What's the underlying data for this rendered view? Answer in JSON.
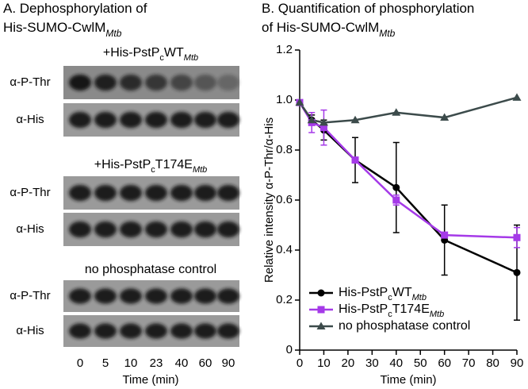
{
  "panel_a": {
    "title": [
      [
        {
          "text": "A. Dephosphorylation of"
        }
      ],
      [
        {
          "text": "His-SUMO-CwlM"
        },
        {
          "text": "Mtb",
          "sub": true,
          "italic": true
        }
      ]
    ],
    "groups": [
      {
        "header": [
          {
            "text": "+His-PstP"
          },
          {
            "text": "c",
            "sub": true
          },
          {
            "text": "WT"
          },
          {
            "text": "Mtb",
            "sub": true,
            "italic": true
          }
        ],
        "rows": [
          "α-P-Thr",
          "α-His"
        ]
      },
      {
        "header": [
          {
            "text": "+His-PstP"
          },
          {
            "text": "c",
            "sub": true
          },
          {
            "text": "T174E"
          },
          {
            "text": "Mtb",
            "sub": true,
            "italic": true
          }
        ],
        "rows": [
          "α-P-Thr",
          "α-His"
        ]
      },
      {
        "header": [
          {
            "text": "no phosphatase control"
          }
        ],
        "rows": [
          "α-P-Thr",
          "α-His"
        ]
      }
    ],
    "lanes": [
      0,
      5,
      10,
      23,
      40,
      60,
      90
    ],
    "xlabel": "Time (min)"
  },
  "chart_data": {
    "type": "line",
    "title": [
      [
        {
          "text": "B. Quantification of phosphorylation"
        }
      ],
      [
        {
          "text": "of His-SUMO-CwlM"
        },
        {
          "text": "Mtb",
          "sub": true,
          "italic": true
        }
      ]
    ],
    "xlabel": "Time (min)",
    "ylabel": "Relative intensity α-P-Thr/α-His",
    "x": [
      0,
      5,
      10,
      23,
      40,
      60,
      90
    ],
    "xlim": [
      0,
      90
    ],
    "xticks": [
      0,
      10,
      20,
      30,
      40,
      50,
      60,
      70,
      80,
      90
    ],
    "ylim": [
      0,
      1.2
    ],
    "yticks": [
      0,
      0.2,
      0.4,
      0.6,
      0.8,
      {
        "value": 1,
        "label": "1.0"
      },
      1.2
    ],
    "legend": "lower left",
    "series": [
      {
        "name": [
          {
            "text": "His-PstP"
          },
          {
            "text": "c",
            "sub": true
          },
          {
            "text": "WT"
          },
          {
            "text": "Mtb",
            "sub": true,
            "italic": true
          }
        ],
        "color": "#000000",
        "marker": "circle",
        "values": [
          0.99,
          0.92,
          0.88,
          0.76,
          0.65,
          0.44,
          0.31
        ],
        "errors": [
          null,
          0.02,
          0.04,
          0.09,
          0.18,
          0.14,
          0.19
        ]
      },
      {
        "name": [
          {
            "text": "His-PstP"
          },
          {
            "text": "c",
            "sub": true
          },
          {
            "text": "T174E"
          },
          {
            "text": "Mtb",
            "sub": true,
            "italic": true
          }
        ],
        "color": "#a53ae8",
        "marker": "square",
        "values": [
          0.99,
          0.91,
          0.89,
          0.76,
          0.6,
          0.46,
          0.45
        ],
        "errors": [
          null,
          0.04,
          0.07,
          0.01,
          0.02,
          0.01,
          0.04
        ]
      },
      {
        "name": [
          {
            "text": "no phosphatase control"
          }
        ],
        "color": "#3c4b4b",
        "marker": "triangle",
        "values": [
          0.99,
          0.92,
          0.91,
          0.92,
          0.95,
          0.93,
          1.01
        ]
      }
    ]
  }
}
